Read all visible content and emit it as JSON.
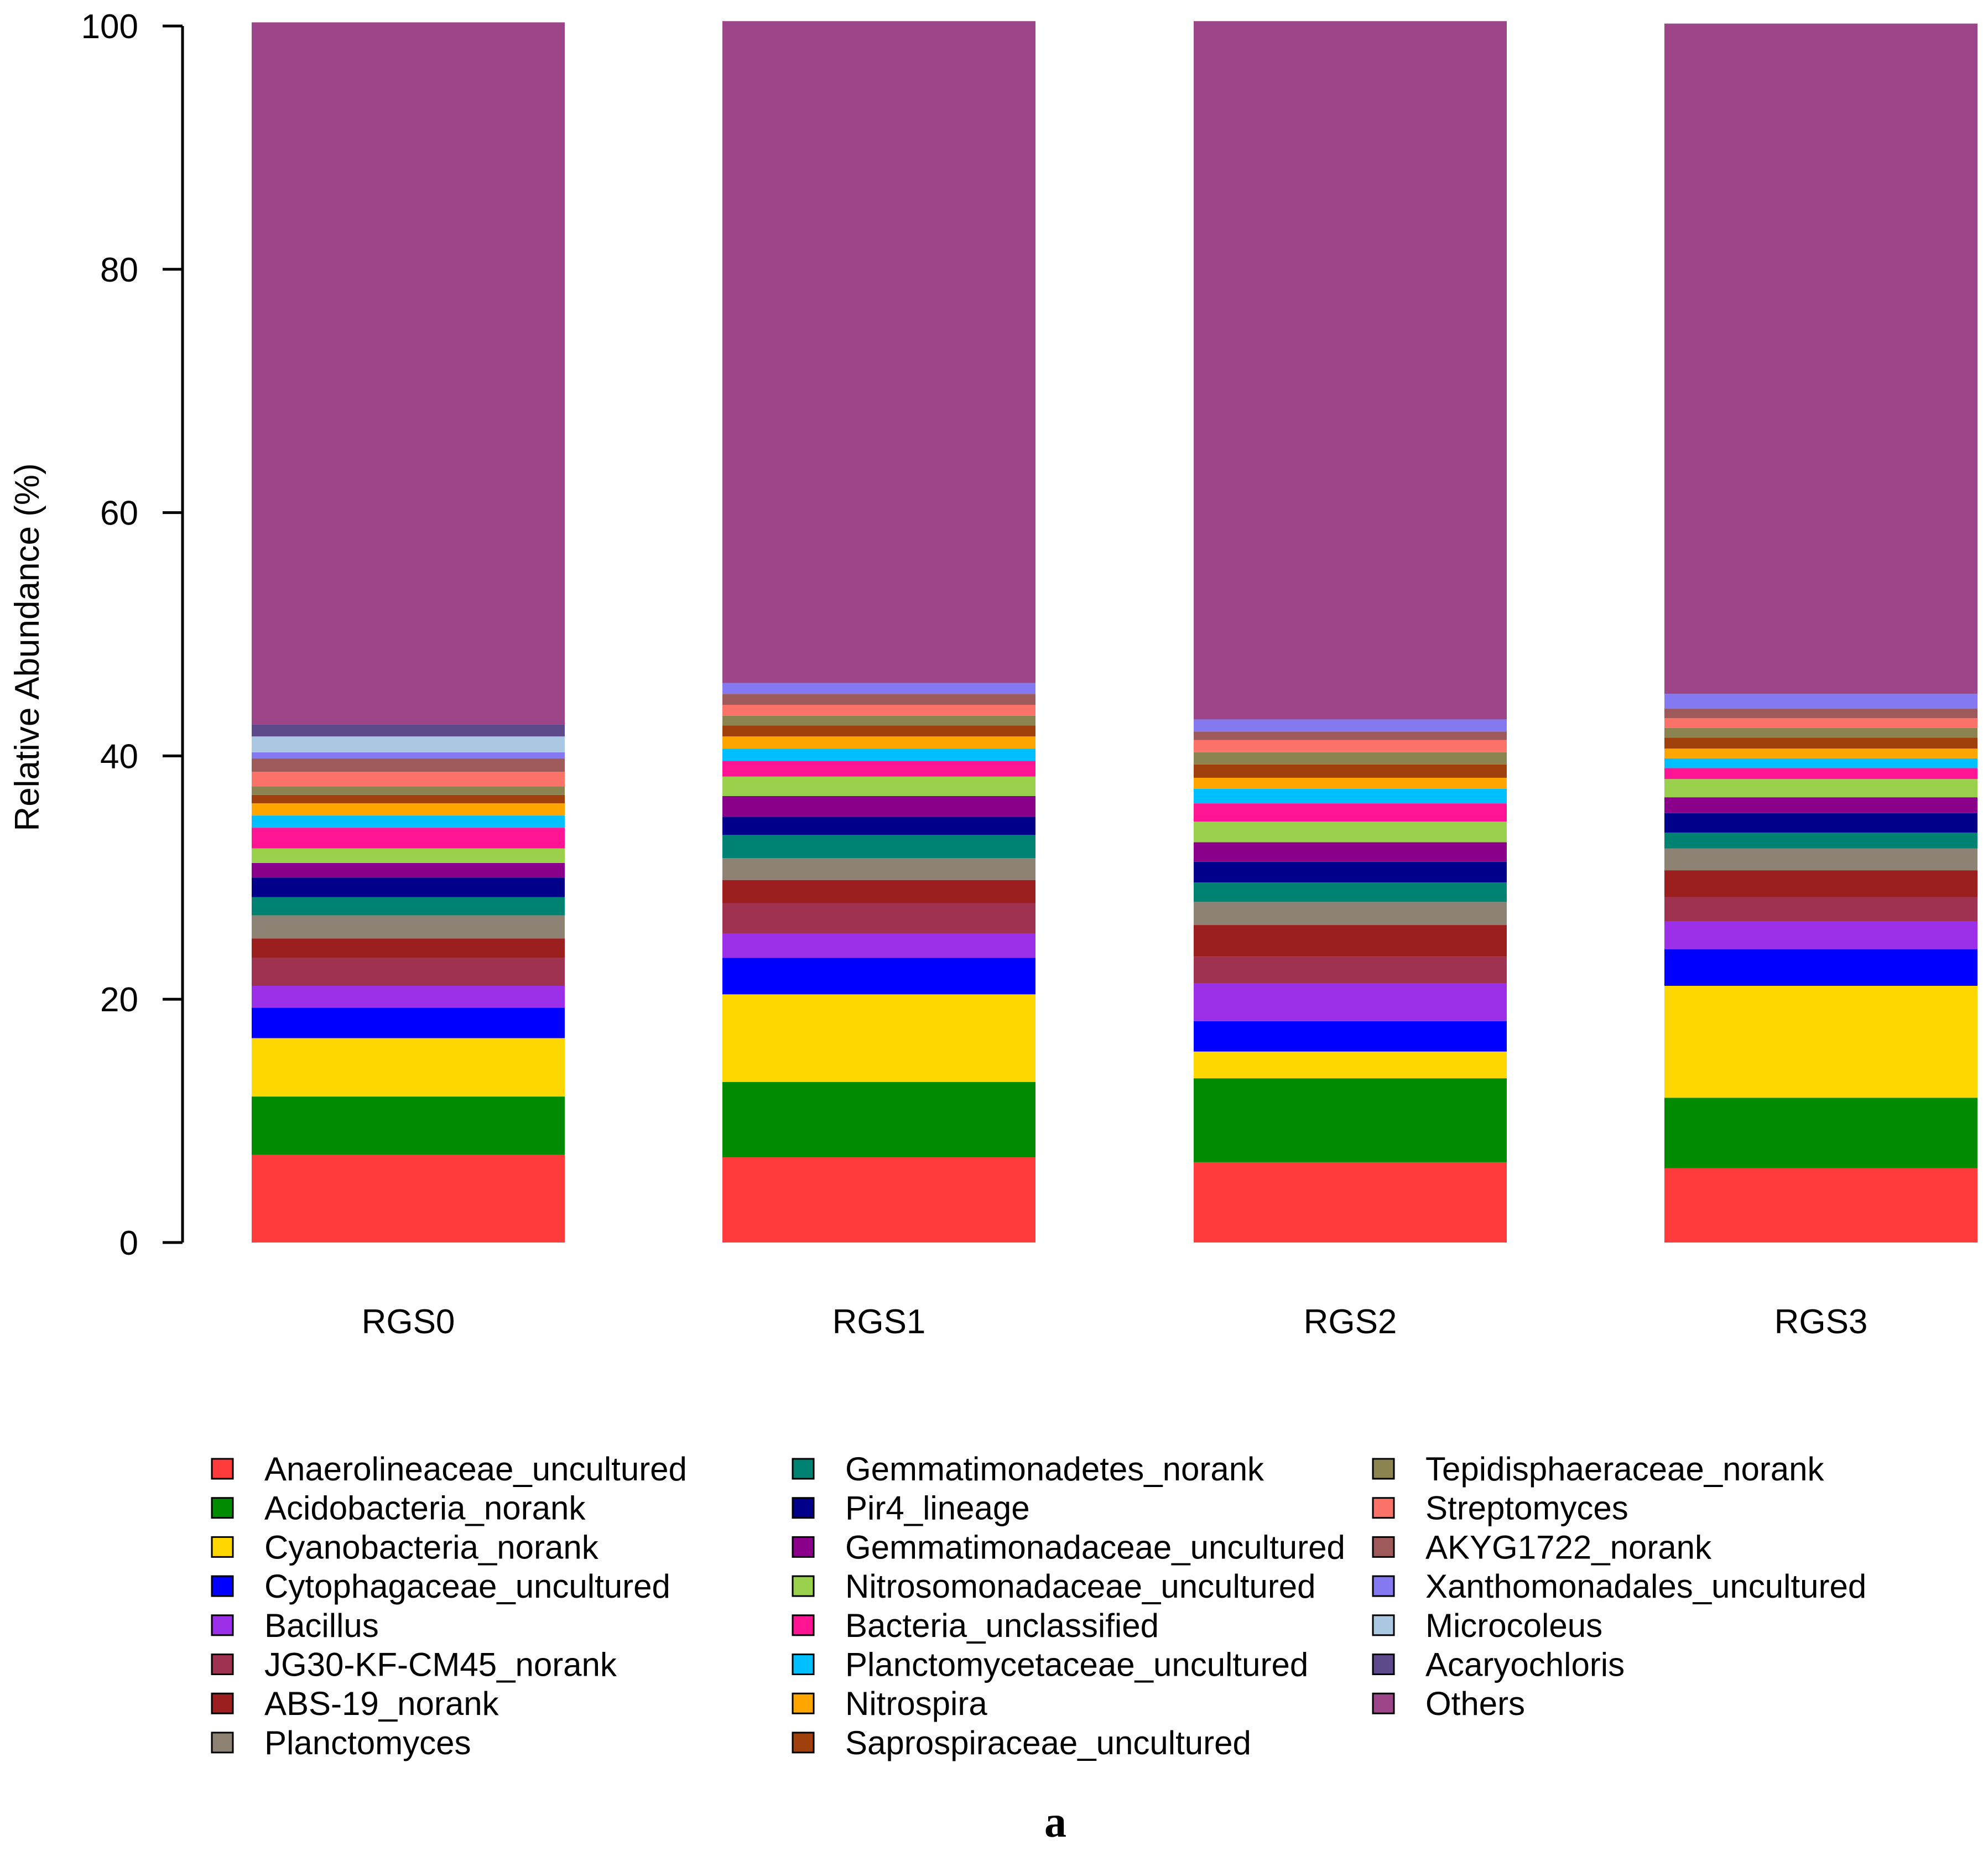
{
  "chart_data": {
    "type": "bar",
    "stacked": true,
    "ylabel": "Relative Abundance (%)",
    "ylim": [
      0,
      100
    ],
    "yticks": [
      "0",
      "20",
      "40",
      "60",
      "80",
      "100"
    ],
    "grid": false,
    "legend_position": "bottom",
    "panel_label": "a",
    "categories": [
      "RGS0",
      "RGS1",
      "RGS2",
      "RGS3"
    ],
    "series": [
      {
        "name": "Anaerolineaceae_uncultured",
        "color": "#FF3B3B",
        "values": [
          7.2,
          7.0,
          6.6,
          6.1
        ]
      },
      {
        "name": "Acidobacteria_norank",
        "color": "#008B00",
        "values": [
          4.8,
          6.2,
          6.9,
          5.8
        ]
      },
      {
        "name": "Cyanobacteria_norank",
        "color": "#FFD700",
        "values": [
          4.8,
          7.2,
          2.2,
          9.2
        ]
      },
      {
        "name": "Cytophagaceae_uncultured",
        "color": "#0000FF",
        "values": [
          2.5,
          3.0,
          2.5,
          3.0
        ]
      },
      {
        "name": "Bacillus",
        "color": "#9B30E8",
        "values": [
          1.8,
          2.0,
          3.1,
          2.3
        ]
      },
      {
        "name": "JG30-KF-CM45_norank",
        "color": "#9E3250",
        "values": [
          2.3,
          2.5,
          2.2,
          2.0
        ]
      },
      {
        "name": "ABS-19_norank",
        "color": "#9C1F1F",
        "values": [
          1.6,
          1.9,
          2.6,
          2.2
        ]
      },
      {
        "name": "Planctomyces",
        "color": "#8E8275",
        "values": [
          1.9,
          1.8,
          1.9,
          1.8
        ]
      },
      {
        "name": "Gemmatimonadetes_norank",
        "color": "#008272",
        "values": [
          1.5,
          1.9,
          1.6,
          1.3
        ]
      },
      {
        "name": "Pir4_lineage",
        "color": "#00008B",
        "values": [
          1.6,
          1.5,
          1.7,
          1.6
        ]
      },
      {
        "name": "Gemmatimonadaceae_uncultured",
        "color": "#8B008B",
        "values": [
          1.2,
          1.7,
          1.6,
          1.3
        ]
      },
      {
        "name": "Nitrosomonadaceae_uncultured",
        "color": "#99D14C",
        "values": [
          1.2,
          1.6,
          1.7,
          1.5
        ]
      },
      {
        "name": "Bacteria_unclassified",
        "color": "#FF1493",
        "values": [
          1.7,
          1.3,
          1.5,
          0.9
        ]
      },
      {
        "name": "Planctomycetaceae_uncultured",
        "color": "#00BFFF",
        "values": [
          1.0,
          1.0,
          1.2,
          0.8
        ]
      },
      {
        "name": "Nitrospira",
        "color": "#FFA500",
        "values": [
          1.0,
          1.0,
          0.9,
          0.8
        ]
      },
      {
        "name": "Saprospiraceae_uncultured",
        "color": "#A0410D",
        "values": [
          0.7,
          0.9,
          1.1,
          0.9
        ]
      },
      {
        "name": "Tepidisphaeraceae_norank",
        "color": "#8C8450",
        "values": [
          0.7,
          0.8,
          1.0,
          0.8
        ]
      },
      {
        "name": "Streptomyces",
        "color": "#FA7268",
        "values": [
          1.2,
          0.9,
          1.0,
          0.8
        ]
      },
      {
        "name": "AKYG1722_norank",
        "color": "#9E5A5A",
        "values": [
          1.1,
          0.9,
          0.7,
          0.8
        ]
      },
      {
        "name": "Xanthomonadales_uncultured",
        "color": "#8479F0",
        "values": [
          0.5,
          0.9,
          1.0,
          1.2
        ]
      },
      {
        "name": "Microcoleus",
        "color": "#ABC8E2",
        "values": [
          1.3,
          0,
          0,
          0
        ]
      },
      {
        "name": "Acaryochloris",
        "color": "#5C4A8A",
        "values": [
          1.0,
          0,
          0,
          0
        ]
      },
      {
        "name": "Others",
        "color": "#9C4589",
        "values": [
          57.7,
          54.4,
          57.4,
          55.1
        ]
      }
    ]
  }
}
